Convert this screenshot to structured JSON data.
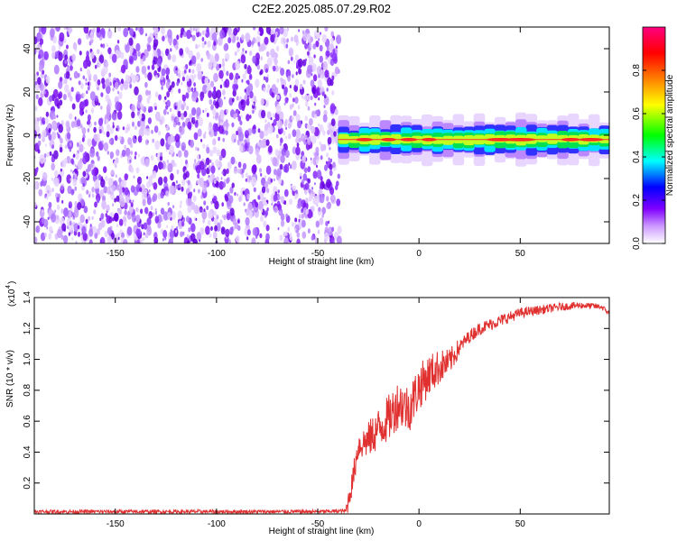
{
  "chart_data": [
    {
      "type": "heatmap",
      "title": "C2E2.2025.085.07.29.R02",
      "xlabel": "Height of straight line (km)",
      "ylabel": "Frequency (Hz)",
      "xlim": [
        -190,
        94
      ],
      "ylim": [
        -50,
        50
      ],
      "xticks": [
        -150,
        -100,
        -50,
        0,
        50
      ],
      "yticks": [
        -40,
        -20,
        0,
        20,
        40
      ],
      "noise_region_x": [
        -190,
        -40
      ],
      "noise_frequency_range": [
        -50,
        50
      ],
      "signal_band": {
        "x_start": -40,
        "x_end": 94,
        "frequency_center": -2,
        "frequency_halfwidth": 5
      },
      "colorbar": {
        "label": "Normalized spectral amplitude",
        "range": [
          0,
          1
        ],
        "ticks": [
          0.0,
          0.2,
          0.4,
          0.6,
          0.8
        ],
        "colors": [
          "#ffffff",
          "#cc99ff",
          "#8000ff",
          "#0000ff",
          "#00ffff",
          "#00ff00",
          "#ffff00",
          "#ff8000",
          "#ff0000",
          "#ff0080"
        ]
      },
      "grid": false
    },
    {
      "type": "line",
      "xlabel": "Height of straight line (km)",
      "ylabel": "SNR (10 * v/v)",
      "yscale_label": "(x10",
      "yscale_exponent": "4",
      "xlim": [
        -190,
        94
      ],
      "ylim": [
        0,
        1.4
      ],
      "xticks": [
        -150,
        -100,
        -50,
        0,
        50
      ],
      "yticks": [
        0.2,
        0.4,
        0.6,
        0.8,
        1.0,
        1.2,
        1.4
      ],
      "color": "#e03030",
      "series": [
        {
          "x": [
            -190,
            -50,
            -36,
            -33,
            -30,
            -25,
            -20,
            -15,
            -10,
            -5,
            0,
            5,
            10,
            15,
            20,
            25,
            30,
            40,
            50,
            60,
            70,
            80,
            90,
            94
          ],
          "values": [
            0.015,
            0.015,
            0.02,
            0.2,
            0.44,
            0.48,
            0.55,
            0.62,
            0.72,
            0.68,
            0.82,
            0.9,
            0.95,
            0.98,
            1.08,
            1.15,
            1.2,
            1.25,
            1.3,
            1.32,
            1.34,
            1.35,
            1.34,
            1.3
          ]
        }
      ],
      "grid": false
    }
  ]
}
